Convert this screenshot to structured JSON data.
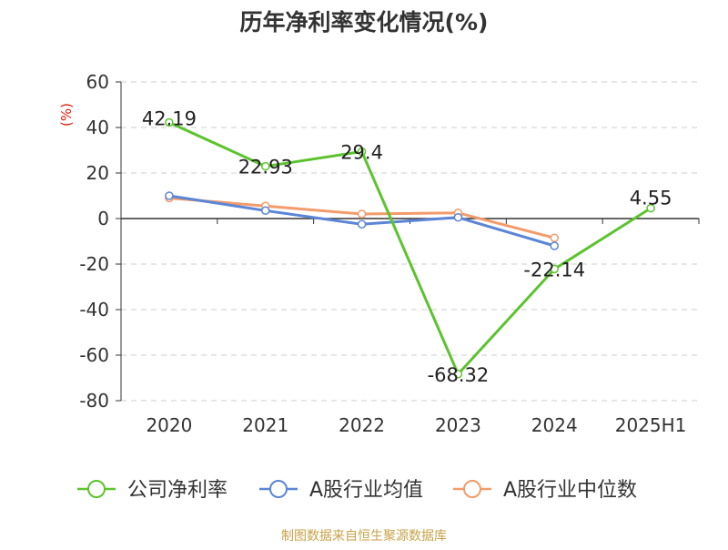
{
  "chart_data": {
    "type": "line",
    "title": "历年净利率变化情况(%)",
    "ylabel": "(%)",
    "categories": [
      "2020",
      "2021",
      "2022",
      "2023",
      "2024",
      "2025H1"
    ],
    "ylim": [
      -80,
      60
    ],
    "yticks": [
      60,
      40,
      20,
      0,
      -20,
      -40,
      -60,
      -80
    ],
    "grid": true,
    "legend_position": "bottom",
    "series": [
      {
        "name": "公司净利率",
        "color": "#5cc32e",
        "values": [
          42.19,
          22.93,
          29.4,
          -68.32,
          -22.14,
          4.55
        ],
        "labels": [
          "42.19",
          "22.93",
          "29.4",
          "-68.32",
          "-22.14",
          "4.55"
        ]
      },
      {
        "name": "A股行业均值",
        "color": "#5b85d6",
        "values": [
          10,
          3.5,
          -2.5,
          0.5,
          -12,
          null
        ]
      },
      {
        "name": "A股行业中位数",
        "color": "#f29b6b",
        "values": [
          9,
          5.5,
          2,
          2.5,
          -8.5,
          null
        ]
      }
    ]
  },
  "source_text": "制图数据来自恒生聚源数据库",
  "colors": {
    "title": "#333333",
    "ylabel": "#d81e06",
    "axis": "#333333",
    "grid": "#cccccc",
    "source": "#c8a24a"
  }
}
